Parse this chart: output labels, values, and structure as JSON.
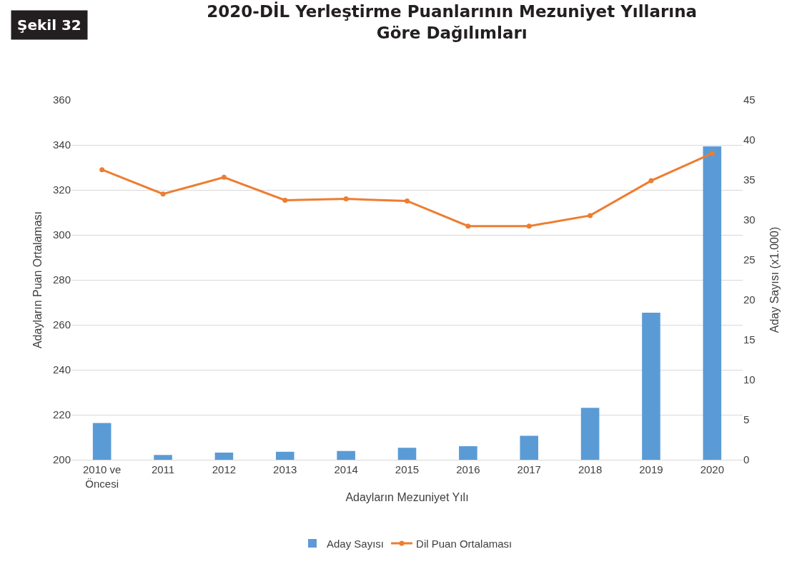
{
  "chart_data": {
    "type": "bar",
    "title": "2020-DİL Yerleştirme Puanlarının Mezuniyet Yıllarına\nGöre Dağılımları",
    "xlabel": "Adayların Mezuniyet Yılı",
    "ylabel": "Adayların Puan Ortalaması",
    "y2label": "Aday Sayısı (x1.000)",
    "annotations": [
      "Şekil 32"
    ],
    "categories": [
      "2010 ve\nÖncesi",
      "2011",
      "2012",
      "2013",
      "2014",
      "2015",
      "2016",
      "2017",
      "2018",
      "2019",
      "2020"
    ],
    "series": [
      {
        "name": "Aday Sayısı",
        "axis": "y2",
        "color": "#5b9bd5",
        "values": [
          4.6,
          0.6,
          0.9,
          1.0,
          1.1,
          1.5,
          1.7,
          3.0,
          6.5,
          18.4,
          39.2
        ]
      },
      {
        "name": "Dil Puan Ortalaması",
        "type": "line",
        "axis": "y",
        "color": "#ed7d31",
        "marker": "circle",
        "values": [
          329.0,
          318.2,
          325.6,
          315.4,
          316.0,
          315.1,
          303.9,
          303.9,
          308.6,
          324.1,
          336.2
        ]
      }
    ],
    "ylim": [
      200,
      360
    ],
    "yticks": [
      200,
      220,
      240,
      260,
      280,
      300,
      320,
      340,
      360
    ],
    "y2lim": [
      0,
      45
    ],
    "y2ticks": [
      0,
      5,
      10,
      15,
      20,
      25,
      30,
      35,
      40,
      45
    ],
    "grid": "y",
    "legend": "bottom"
  }
}
